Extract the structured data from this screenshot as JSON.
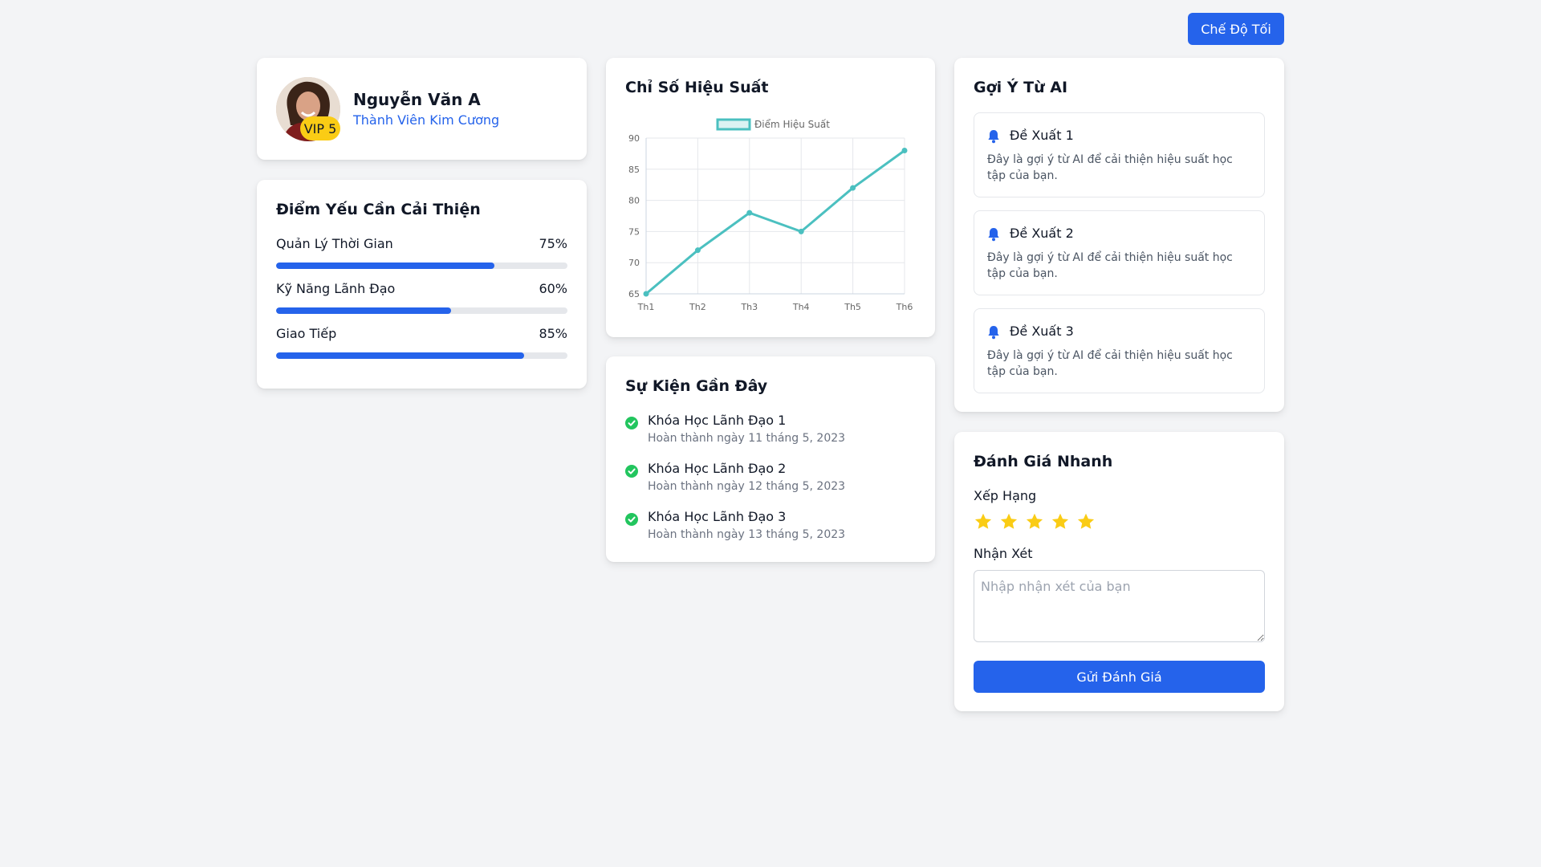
{
  "header": {
    "theme_toggle_label": "Chế Độ Tối"
  },
  "profile": {
    "name": "Nguyễn Văn A",
    "tier": "Thành Viên Kim Cương",
    "vip_badge": "VIP 5"
  },
  "weak_points": {
    "title": "Điểm Yếu Cần Cải Thiện",
    "items": [
      {
        "label": "Quản Lý Thời Gian",
        "percent_text": "75%",
        "value": 75
      },
      {
        "label": "Kỹ Năng Lãnh Đạo",
        "percent_text": "60%",
        "value": 60
      },
      {
        "label": "Giao Tiếp",
        "percent_text": "85%",
        "value": 85
      }
    ]
  },
  "performance": {
    "title": "Chỉ Số Hiệu Suất"
  },
  "chart_data": {
    "type": "line",
    "title": "",
    "xlabel": "",
    "ylabel": "",
    "categories": [
      "Th1",
      "Th2",
      "Th3",
      "Th4",
      "Th5",
      "Th6"
    ],
    "series": [
      {
        "name": "Điểm Hiệu Suất",
        "values": [
          65,
          72,
          78,
          75,
          82,
          88
        ],
        "color": "#4bc0c0"
      }
    ],
    "ylim": [
      65,
      90
    ],
    "yticks": [
      65,
      70,
      75,
      80,
      85,
      90
    ],
    "grid": true,
    "legend": "top-center"
  },
  "events": {
    "title": "Sự Kiện Gần Đây",
    "items": [
      {
        "title": "Khóa Học Lãnh Đạo 1",
        "date": "Hoàn thành ngày 11 tháng 5, 2023"
      },
      {
        "title": "Khóa Học Lãnh Đạo 2",
        "date": "Hoàn thành ngày 12 tháng 5, 2023"
      },
      {
        "title": "Khóa Học Lãnh Đạo 3",
        "date": "Hoàn thành ngày 13 tháng 5, 2023"
      }
    ]
  },
  "ai_suggestions": {
    "title": "Gợi Ý Từ AI",
    "items": [
      {
        "title": "Đề Xuất 1",
        "text": "Đây là gợi ý từ AI để cải thiện hiệu suất học tập của bạn."
      },
      {
        "title": "Đề Xuất 2",
        "text": "Đây là gợi ý từ AI để cải thiện hiệu suất học tập của bạn."
      },
      {
        "title": "Đề Xuất 3",
        "text": "Đây là gợi ý từ AI để cải thiện hiệu suất học tập của bạn."
      }
    ]
  },
  "quick_review": {
    "title": "Đánh Giá Nhanh",
    "rating_label": "Xếp Hạng",
    "rating": 5,
    "rating_max": 5,
    "comment_label": "Nhận Xét",
    "comment_placeholder": "Nhập nhận xét của bạn",
    "comment_value": "",
    "submit_label": "Gửi Đánh Giá"
  },
  "colors": {
    "accent": "#2563eb",
    "success": "#22c55e",
    "star": "#facc15",
    "chart_line": "#4bc0c0"
  },
  "icons": {
    "suggestion": "bell-icon",
    "event": "check-circle-icon",
    "rating": "star-icon"
  }
}
